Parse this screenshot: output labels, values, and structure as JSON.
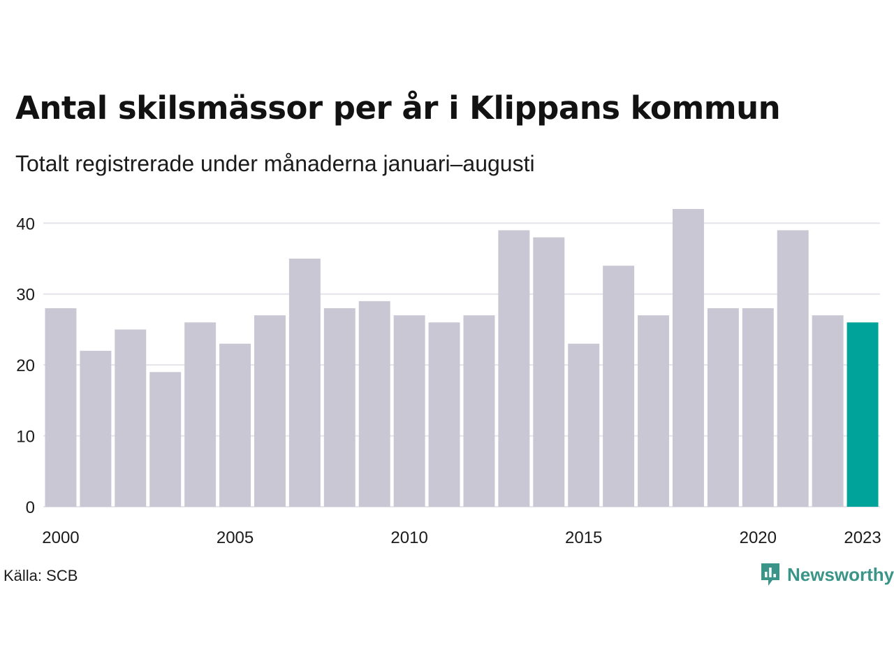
{
  "title": "Antal skilsmässor per år i Klippans kommun",
  "subtitle": "Totalt registrerade under månaderna januari–augusti",
  "source": "Källa: SCB",
  "brand": {
    "name": "Newsworthy",
    "icon": "newsworthy-logo-icon",
    "color": "#3a9488"
  },
  "colors": {
    "bar": "#c8c7d3",
    "highlight": "#00a39a",
    "grid": "#e4e4ea"
  },
  "chart_data": {
    "type": "bar",
    "title": "Antal skilsmässor per år i Klippans kommun",
    "subtitle": "Totalt registrerade under månaderna januari–augusti",
    "xlabel": "",
    "ylabel": "",
    "categories": [
      2000,
      2001,
      2002,
      2003,
      2004,
      2005,
      2006,
      2007,
      2008,
      2009,
      2010,
      2011,
      2012,
      2013,
      2014,
      2015,
      2016,
      2017,
      2018,
      2019,
      2020,
      2021,
      2022,
      2023
    ],
    "values": [
      28,
      22,
      25,
      19,
      26,
      23,
      27,
      35,
      28,
      29,
      27,
      26,
      27,
      39,
      38,
      23,
      34,
      27,
      42,
      28,
      28,
      39,
      27,
      26
    ],
    "highlight_category": 2023,
    "ylim": [
      0,
      42
    ],
    "yticks": [
      0,
      10,
      20,
      30,
      40
    ],
    "xtick_labels": [
      "2000",
      "2005",
      "2010",
      "2015",
      "2020",
      "2023"
    ],
    "grid": "horizontal",
    "legend": "none"
  }
}
